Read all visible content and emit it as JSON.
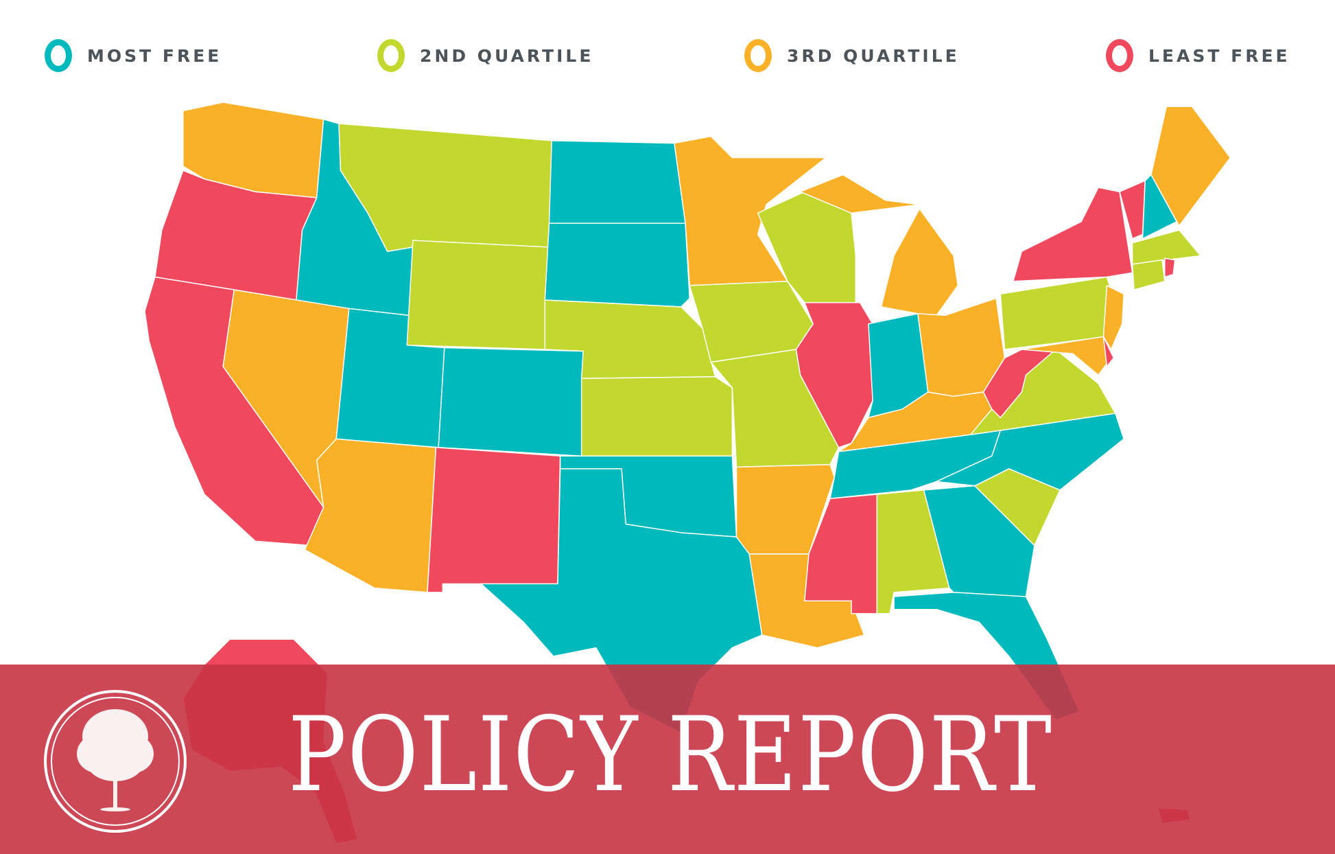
{
  "legend": [
    {
      "label": "MOST FREE",
      "color": "#00b9bc"
    },
    {
      "label": "2ND QUARTILE",
      "color": "#c2d82e"
    },
    {
      "label": "3RD QUARTILE",
      "color": "#fbb127"
    },
    {
      "label": "LEAST FREE",
      "color": "#f0495e"
    }
  ],
  "map": {
    "type": "choropleth",
    "quartile_colors": {
      "1": "#00b9bc",
      "2": "#c2d82e",
      "3": "#fbb127",
      "4": "#f0495e"
    },
    "state_quartiles": {
      "WA": 3,
      "OR": 4,
      "CA": 4,
      "ID": 1,
      "NV": 3,
      "MT": 2,
      "WY": 2,
      "UT": 1,
      "CO": 1,
      "AZ": 3,
      "NM": 4,
      "ND": 1,
      "SD": 1,
      "NE": 2,
      "KS": 2,
      "OK": 1,
      "TX": 1,
      "MN": 3,
      "IA": 2,
      "MO": 2,
      "AR": 3,
      "LA": 3,
      "WI": 2,
      "IL": 4,
      "IN": 1,
      "MI": 3,
      "OH": 3,
      "KY": 3,
      "TN": 1,
      "MS": 4,
      "AL": 2,
      "GA": 1,
      "FL": 1,
      "SC": 2,
      "NC": 1,
      "VA": 2,
      "WV": 4,
      "PA": 2,
      "NY": 4,
      "NJ": 3,
      "MD": 3,
      "DE": 4,
      "VT": 4,
      "NH": 1,
      "ME": 3,
      "MA": 2,
      "CT": 2,
      "RI": 4,
      "AK": 4,
      "HI": 4
    }
  },
  "banner": {
    "title": "POLICY REPORT",
    "color": "#c83444"
  }
}
